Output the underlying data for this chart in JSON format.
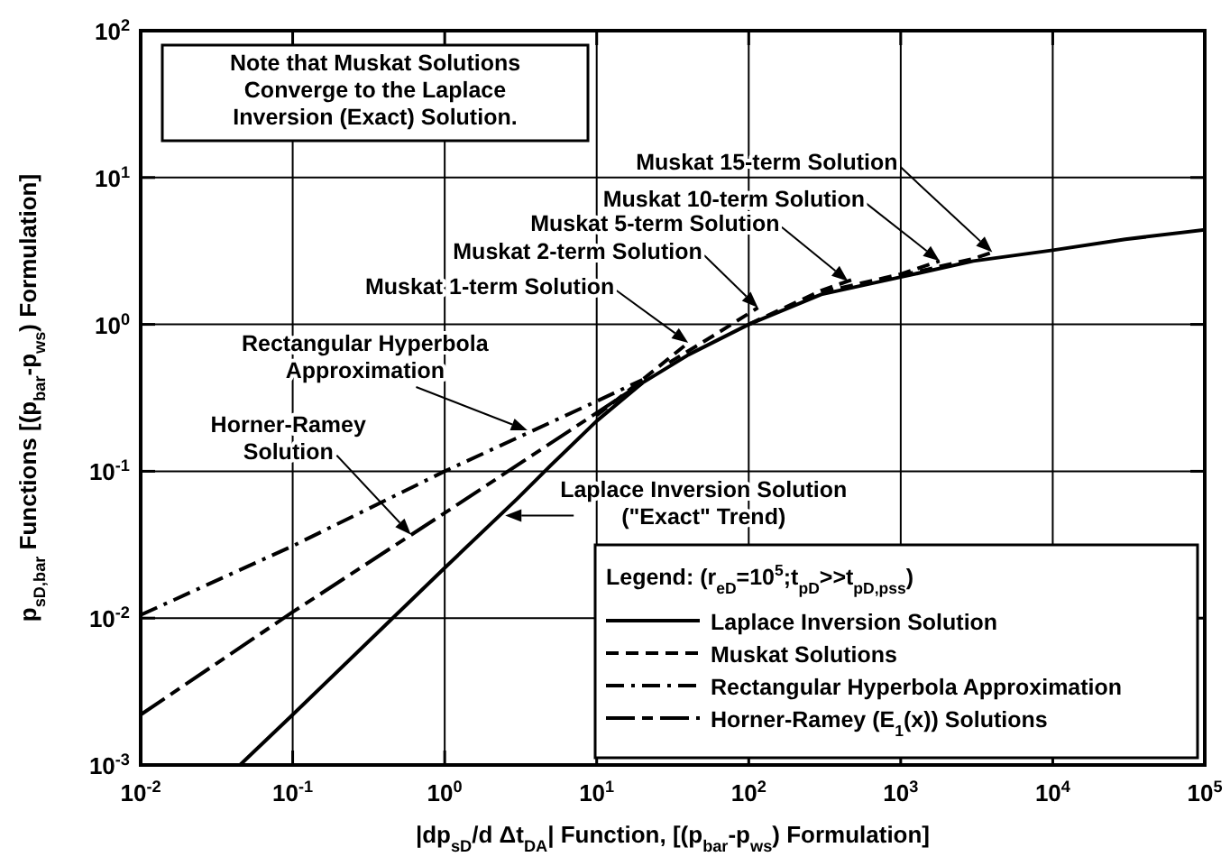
{
  "chart_data": {
    "type": "line",
    "xlabel": "|dp$_{sD}$/d Δt$_{DA}$| Function, [(p$_{bar}$-p$_{ws}$) Formulation]",
    "ylabel": "p$_{sD,bar}$ Functions [(p$_{bar}$-p$_{ws}$) Formulation]",
    "legend_title": "Legend: (r$_{eD}$=10$^{5}$;t$_{pD}$>>t$_{pD,pss}$)",
    "log": "xy",
    "grid": true,
    "legend": "bottom right",
    "xlim": [
      0.01,
      100000
    ],
    "ylim": [
      0.001,
      100
    ],
    "xticks": [
      {
        "value": 0.01,
        "label": "10$^{-2}$"
      },
      {
        "value": 0.1,
        "label": "10$^{-1}$"
      },
      {
        "value": 1,
        "label": "10$^{0}$"
      },
      {
        "value": 10,
        "label": "10$^{1}$"
      },
      {
        "value": 100,
        "label": "10$^{2}$"
      },
      {
        "value": 1000,
        "label": "10$^{3}$"
      },
      {
        "value": 10000,
        "label": "10$^{4}$"
      },
      {
        "value": 100000,
        "label": "10$^{5}$"
      }
    ],
    "yticks": [
      {
        "value": 0.001,
        "label": "10$^{-3}$"
      },
      {
        "value": 0.01,
        "label": "10$^{-2}$"
      },
      {
        "value": 0.1,
        "label": "10$^{-1}$"
      },
      {
        "value": 1,
        "label": "10$^{0}$"
      },
      {
        "value": 10,
        "label": "10$^{1}$"
      },
      {
        "value": 100,
        "label": "10$^{2}$"
      }
    ],
    "series": [
      {
        "name": "Laplace Inversion Solution",
        "color": "#000000",
        "line_style": "solid",
        "x": [
          0.045,
          0.1,
          1,
          3,
          5,
          10,
          20,
          40,
          100,
          300,
          1000,
          3000,
          10000,
          30000,
          100000
        ],
        "values": [
          0.001,
          0.0022,
          0.022,
          0.065,
          0.11,
          0.22,
          0.4,
          0.62,
          1.0,
          1.6,
          2.1,
          2.7,
          3.2,
          3.8,
          4.4
        ]
      },
      {
        "name": "Muskat Solutions",
        "color": "#000000",
        "line_style": "dashed",
        "x": [
          10,
          20,
          40
        ],
        "values": [
          0.24,
          0.42,
          0.75
        ]
      },
      {
        "color": "#000000",
        "line_style": "dashed",
        "x": [
          30,
          60,
          115
        ],
        "values": [
          0.55,
          0.85,
          1.3
        ]
      },
      {
        "color": "#000000",
        "line_style": "dashed",
        "x": [
          100,
          300,
          500
        ],
        "values": [
          1.0,
          1.7,
          2.05
        ]
      },
      {
        "color": "#000000",
        "line_style": "dashed",
        "x": [
          300,
          1000,
          1800
        ],
        "values": [
          1.65,
          2.2,
          2.7
        ]
      },
      {
        "color": "#000000",
        "line_style": "dashed",
        "x": [
          1000,
          3000,
          4000
        ],
        "values": [
          2.15,
          2.8,
          3.1
        ]
      },
      {
        "name": "Rectangular Hyperbola Approximation",
        "color": "#000000",
        "line_style": "dashdot",
        "x": [
          0.01,
          0.1,
          1,
          10,
          20
        ],
        "values": [
          0.0105,
          0.031,
          0.1,
          0.3,
          0.42
        ]
      },
      {
        "name": "Horner-Ramey (E$_{1}$(x)) Solutions",
        "color": "#000000",
        "line_style": "longdashdash",
        "x": [
          0.01,
          0.1,
          1,
          10,
          20
        ],
        "values": [
          0.0022,
          0.011,
          0.052,
          0.25,
          0.4
        ]
      }
    ],
    "annotations": [
      "Note that Muskat Solutions\nConverge to the Laplace\nInversion (Exact) Solution.",
      {
        "text": "Muskat 15-term Solution",
        "x": 4000,
        "y": 3.1
      },
      {
        "text": "Muskat 10-term Solution",
        "x": 1800,
        "y": 2.7
      },
      {
        "text": "Muskat 5-term Solution",
        "x": 450,
        "y": 1.97
      },
      {
        "text": "Muskat 2-term Solution",
        "x": 115,
        "y": 1.3
      },
      {
        "text": "Muskat 1-term Solution",
        "x": 40,
        "y": 0.75
      },
      {
        "text": "Rectangular Hyperbola\nApproximation",
        "x": 3.5,
        "y": 0.19
      },
      {
        "text": "Horner-Ramey\nSolution",
        "x": 0.6,
        "y": 0.037
      },
      {
        "text": "Laplace Inversion Solution\n(\"Exact\" Trend)",
        "x": 2.5,
        "y": 0.05
      }
    ]
  }
}
